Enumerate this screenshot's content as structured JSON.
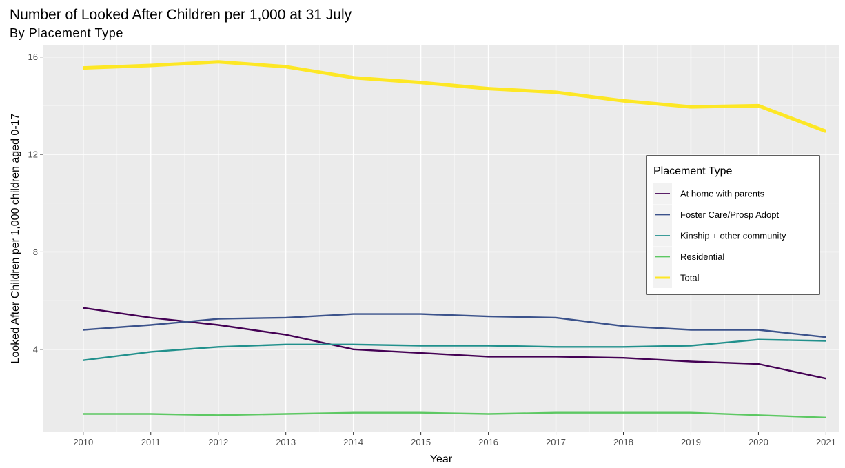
{
  "title": "Number of Looked After Children per 1,000 at 31 July",
  "subtitle": "By Placement Type",
  "chart_data": {
    "type": "line",
    "title": "Number of Looked After Children per 1,000 at 31 July",
    "subtitle": "By Placement Type",
    "xlabel": "Year",
    "ylabel": "Looked After Children per 1,000 children aged 0-17",
    "x": [
      2010,
      2011,
      2012,
      2013,
      2014,
      2015,
      2016,
      2017,
      2018,
      2019,
      2020,
      2021
    ],
    "xlim": [
      2009.4,
      2021.2
    ],
    "ylim": [
      0.6,
      16.5
    ],
    "yticks": [
      4,
      8,
      12,
      16
    ],
    "grid": true,
    "legend_position": "right",
    "legend_title": "Placement Type",
    "series": [
      {
        "name": "At home with parents",
        "color": "#440154",
        "values": [
          5.7,
          5.3,
          5.0,
          4.6,
          4.0,
          3.85,
          3.7,
          3.7,
          3.65,
          3.5,
          3.4,
          2.8
        ]
      },
      {
        "name": "Foster Care/Prosp Adopt",
        "color": "#3B528B",
        "values": [
          4.8,
          5.0,
          5.25,
          5.3,
          5.45,
          5.45,
          5.35,
          5.3,
          4.95,
          4.8,
          4.8,
          4.5
        ]
      },
      {
        "name": "Kinship + other community",
        "color": "#21908C",
        "values": [
          3.55,
          3.9,
          4.1,
          4.2,
          4.2,
          4.15,
          4.15,
          4.1,
          4.1,
          4.15,
          4.4,
          4.35
        ]
      },
      {
        "name": "Residential",
        "color": "#5DC863",
        "values": [
          1.35,
          1.35,
          1.3,
          1.35,
          1.4,
          1.4,
          1.35,
          1.4,
          1.4,
          1.4,
          1.3,
          1.2
        ]
      },
      {
        "name": "Total",
        "color": "#FDE725",
        "values": [
          15.55,
          15.65,
          15.8,
          15.6,
          15.15,
          14.95,
          14.7,
          14.55,
          14.2,
          13.95,
          14.0,
          12.95
        ]
      }
    ]
  }
}
